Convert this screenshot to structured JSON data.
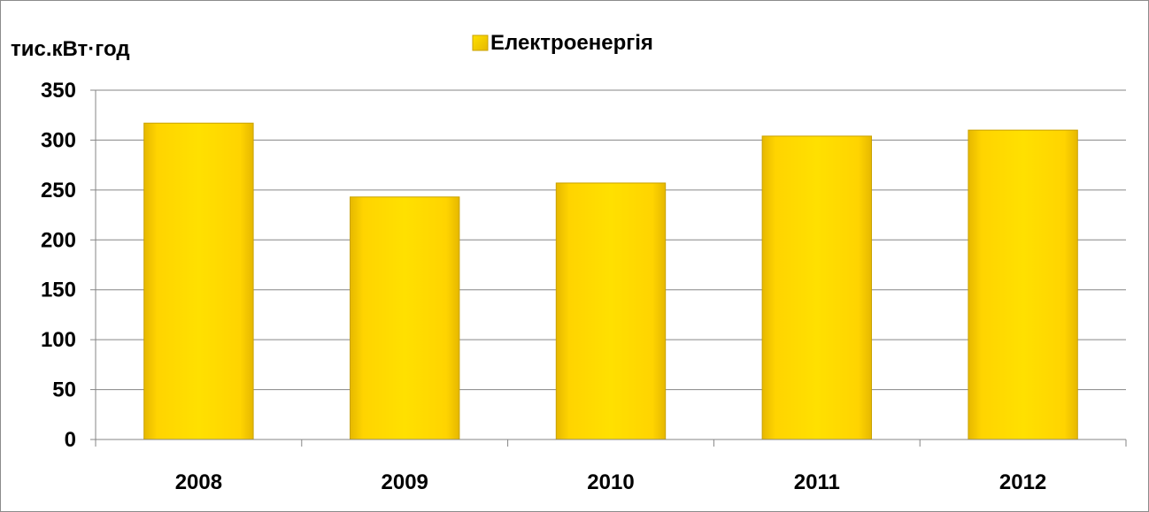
{
  "chart_data": {
    "type": "bar",
    "title": "",
    "xlabel": "",
    "ylabel": "тис.кВт·год",
    "categories": [
      "2008",
      "2009",
      "2010",
      "2011",
      "2012"
    ],
    "series": [
      {
        "name": "Електроенергія",
        "values": [
          317,
          243,
          257,
          304,
          310
        ]
      }
    ],
    "ylim": [
      0,
      350
    ],
    "y_ticks": [
      "0",
      "50",
      "100",
      "150",
      "200",
      "250",
      "300",
      "350"
    ],
    "grid": true,
    "legend_position": "top",
    "colors": {
      "bar_fill": "#ffd000",
      "bar_edge": "#c9a200",
      "grid": "#868686",
      "axis": "#868686"
    }
  }
}
